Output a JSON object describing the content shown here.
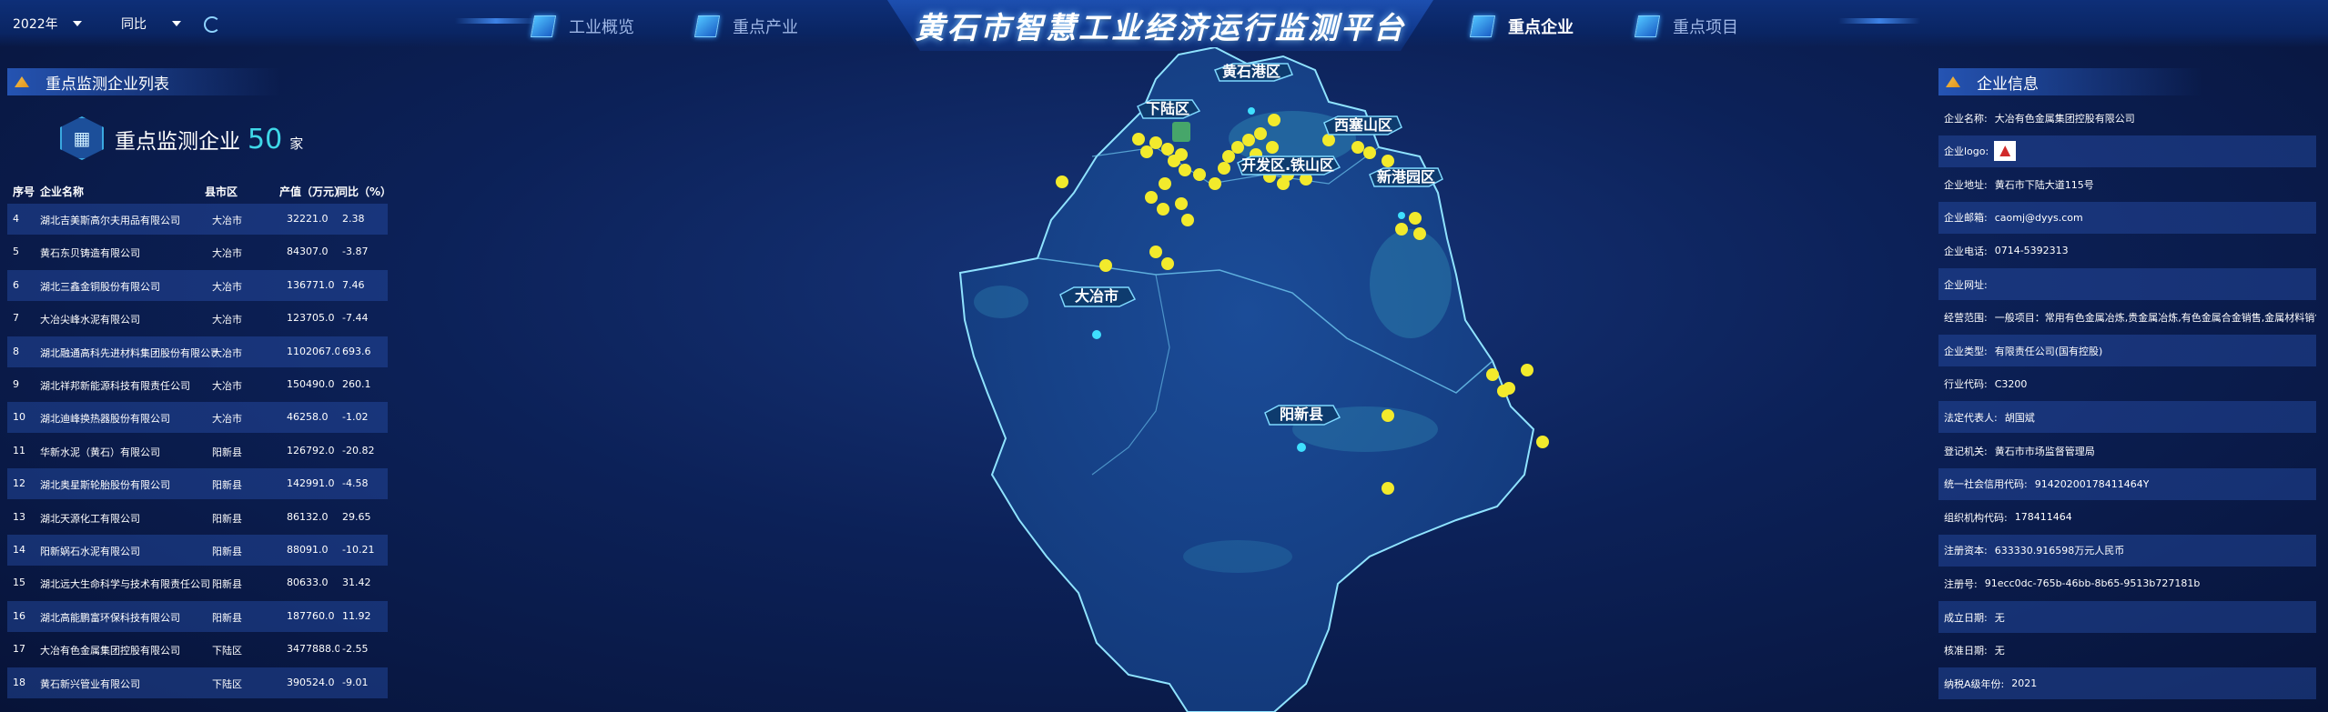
{
  "header": {
    "title": "黄石市智慧工业经济运行监测平台",
    "year_select": "2022年",
    "compare_select": "同比",
    "nav": [
      "工业概览",
      "重点产业",
      "重点企业",
      "重点项目"
    ],
    "active_nav": "重点企业"
  },
  "left_panel": {
    "title": "重点监测企业列表",
    "count_label": "重点监测企业",
    "count": "50",
    "count_unit": "家",
    "columns": [
      "序号",
      "企业名称",
      "县市区",
      "产值（万元）",
      "同比（%）"
    ],
    "rows": [
      [
        "4",
        "湖北吉美斯高尔夫用品有限公司",
        "大冶市",
        "32221.0",
        "2.38"
      ],
      [
        "5",
        "黄石东贝铸造有限公司",
        "大冶市",
        "84307.0",
        "-3.87"
      ],
      [
        "6",
        "湖北三鑫金铜股份有限公司",
        "大冶市",
        "136771.0",
        "7.46"
      ],
      [
        "7",
        "大冶尖峰水泥有限公司",
        "大冶市",
        "123705.0",
        "-7.44"
      ],
      [
        "8",
        "湖北融通高科先进材料集团股份有限公司",
        "大冶市",
        "1102067.0",
        "693.6"
      ],
      [
        "9",
        "湖北祥邦新能源科技有限责任公司",
        "大冶市",
        "150490.0",
        "260.1"
      ],
      [
        "10",
        "湖北迪峰换热器股份有限公司",
        "大冶市",
        "46258.0",
        "-1.02"
      ],
      [
        "11",
        "华新水泥（黄石）有限公司",
        "阳新县",
        "126792.0",
        "-20.82"
      ],
      [
        "12",
        "湖北奥星斯轮胎股份有限公司",
        "阳新县",
        "142991.0",
        "-4.58"
      ],
      [
        "13",
        "湖北天源化工有限公司",
        "阳新县",
        "86132.0",
        "29.65"
      ],
      [
        "14",
        "阳新娲石水泥有限公司",
        "阳新县",
        "88091.0",
        "-10.21"
      ],
      [
        "15",
        "湖北远大生命科学与技术有限责任公司",
        "阳新县",
        "80633.0",
        "31.42"
      ],
      [
        "16",
        "湖北高能鹏富环保科技有限公司",
        "阳新县",
        "187760.0",
        "11.92"
      ],
      [
        "17",
        "大冶有色金属集团控股有限公司",
        "下陆区",
        "3477888.0",
        "-2.55"
      ],
      [
        "18",
        "黄石新兴管业有限公司",
        "下陆区",
        "390524.0",
        "-9.01"
      ]
    ]
  },
  "right_panel": {
    "title": "企业信息",
    "fields": [
      {
        "label": "企业名称:",
        "value": "大冶有色金属集团控股有限公司"
      },
      {
        "label": "企业logo:",
        "value": ""
      },
      {
        "label": "企业地址:",
        "value": "黄石市下陆大道115号"
      },
      {
        "label": "企业邮箱:",
        "value": "caomj@dyys.com"
      },
      {
        "label": "企业电话:",
        "value": "0714-5392313"
      },
      {
        "label": "企业网址:",
        "value": ""
      },
      {
        "label": "经营范围:",
        "value": "一般项目：常用有色金属冶炼,贵金属冶炼,有色金属合金销售,金属材料销售,金..."
      },
      {
        "label": "企业类型:",
        "value": "有限责任公司(国有控股)"
      },
      {
        "label": "行业代码:",
        "value": "C3200"
      },
      {
        "label": "法定代表人:",
        "value": "胡国斌"
      },
      {
        "label": "登记机关:",
        "value": "黄石市市场监督管理局"
      },
      {
        "label": "统一社会信用代码:",
        "value": "91420200178411464Y"
      },
      {
        "label": "组织机构代码:",
        "value": "178411464"
      },
      {
        "label": "注册资本:",
        "value": "633330.916598万元人民币"
      },
      {
        "label": "注册号:",
        "value": "91ecc0dc-765b-46bb-8b65-9513b727181b"
      },
      {
        "label": "成立日期:",
        "value": "无"
      },
      {
        "label": "核准日期:",
        "value": "无"
      },
      {
        "label": "纳税A级年份:",
        "value": "2021"
      }
    ]
  },
  "map": {
    "districts": [
      "黄石港区",
      "下陆区",
      "西塞山区",
      "开发区.铁山区",
      "新港园区",
      "大冶市",
      "阳新县"
    ]
  },
  "colors": {
    "accent": "#3fd0ff",
    "marker": "#f2ea2c",
    "panel_row": "#2a52a8",
    "background": "#0c2158"
  }
}
